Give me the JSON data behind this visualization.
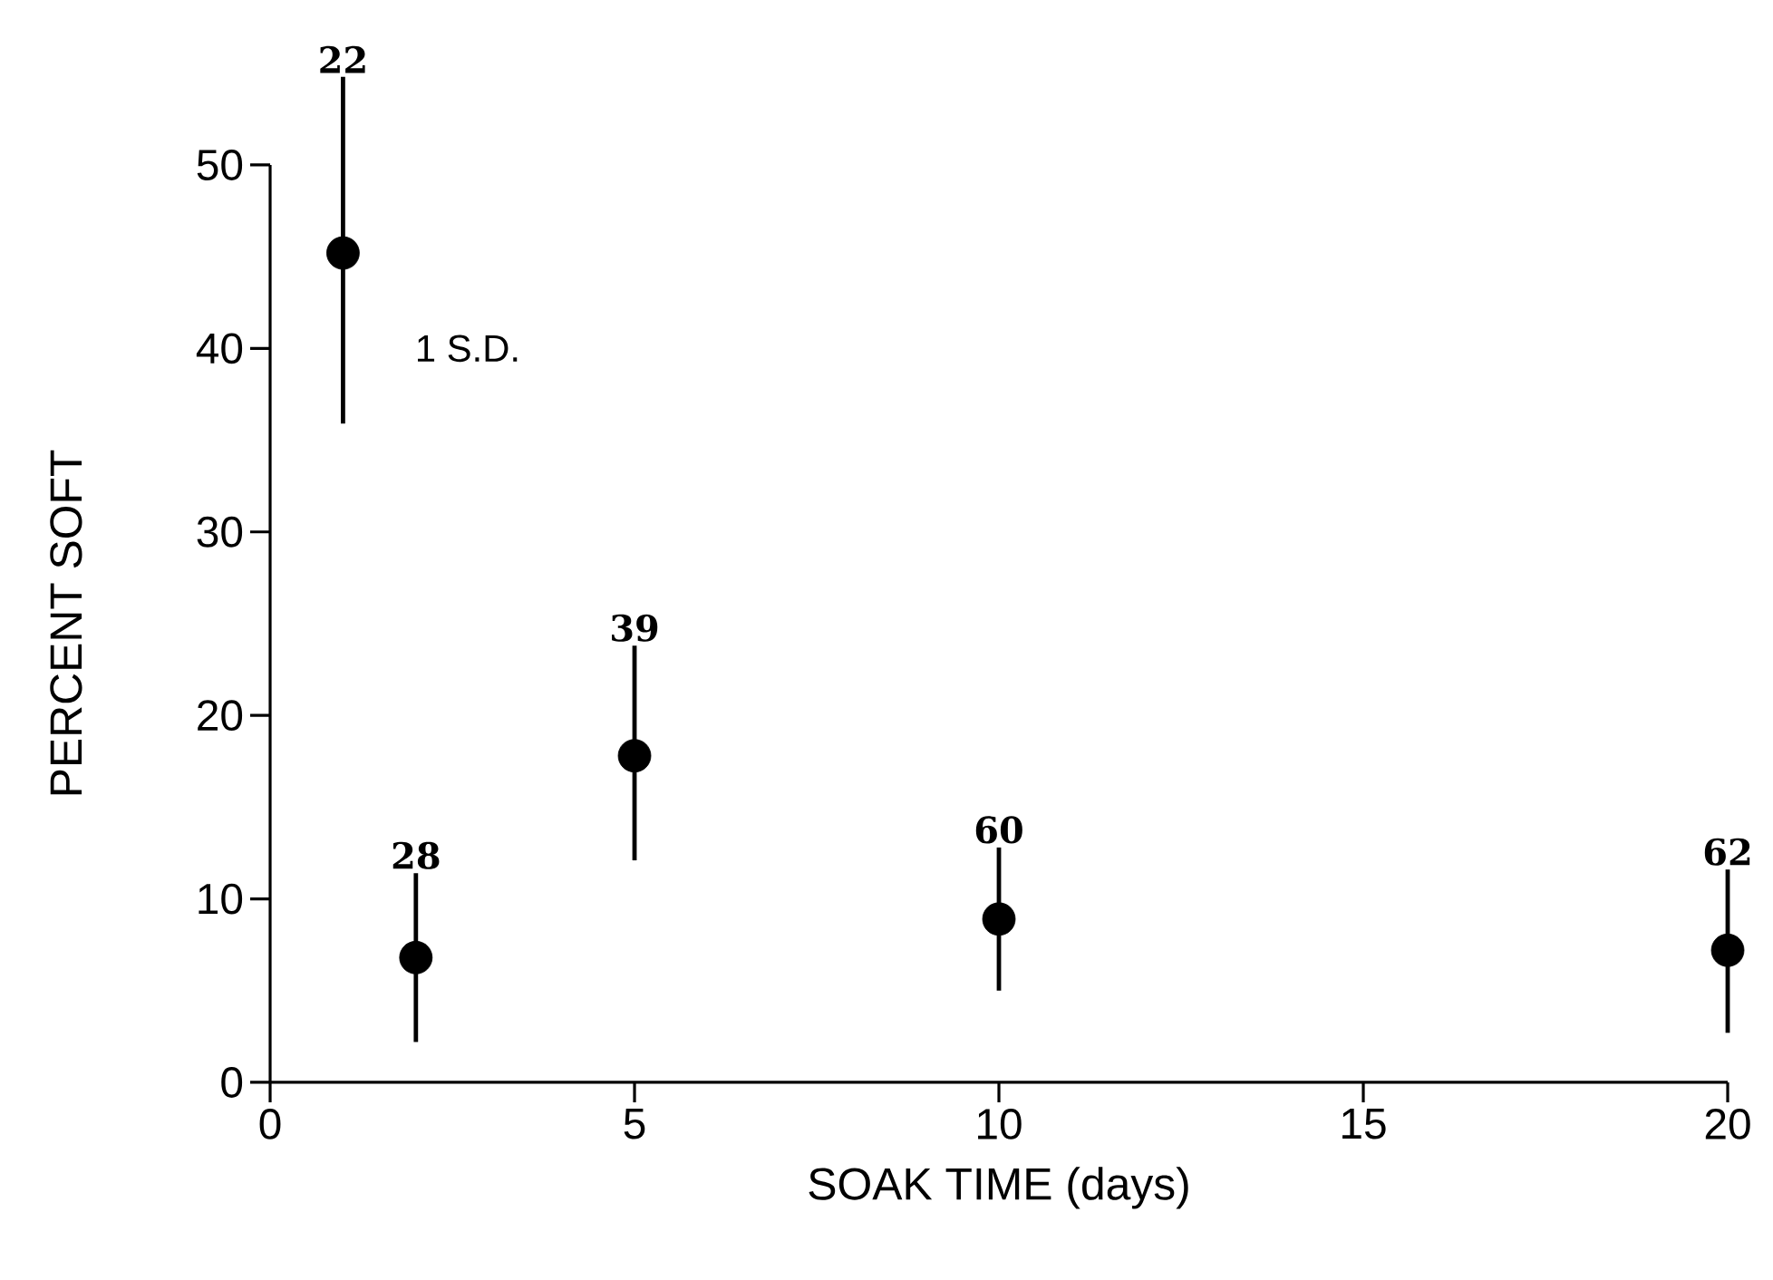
{
  "chart_data": {
    "type": "scatter",
    "xlabel": "SOAK TIME (days)",
    "ylabel": "PERCENT SOFT",
    "x": [
      1,
      2,
      5,
      10,
      20
    ],
    "values": [
      45.2,
      6.8,
      17.8,
      8.9,
      7.2
    ],
    "errors": [
      [
        35.9,
        54.8
      ],
      [
        2.2,
        11.4
      ],
      [
        12.1,
        23.8
      ],
      [
        5.0,
        12.8
      ],
      [
        2.7,
        11.6
      ]
    ],
    "color": "#000000",
    "xlim": [
      0,
      20
    ],
    "ylim": [
      0,
      50
    ],
    "xticks": [
      0,
      5,
      10,
      15,
      20
    ],
    "yticks": [
      0,
      10,
      20,
      30,
      40,
      50
    ],
    "annotations": [
      {
        "text": "22",
        "x": 1,
        "y": 54.8
      },
      {
        "text": "28",
        "x": 2,
        "y": 11.4
      },
      {
        "text": "39",
        "x": 5,
        "y": 23.8
      },
      {
        "text": "60",
        "x": 10,
        "y": 12.8
      },
      {
        "text": "62",
        "x": 20,
        "y": 11.6
      },
      "1 S.D."
    ]
  }
}
